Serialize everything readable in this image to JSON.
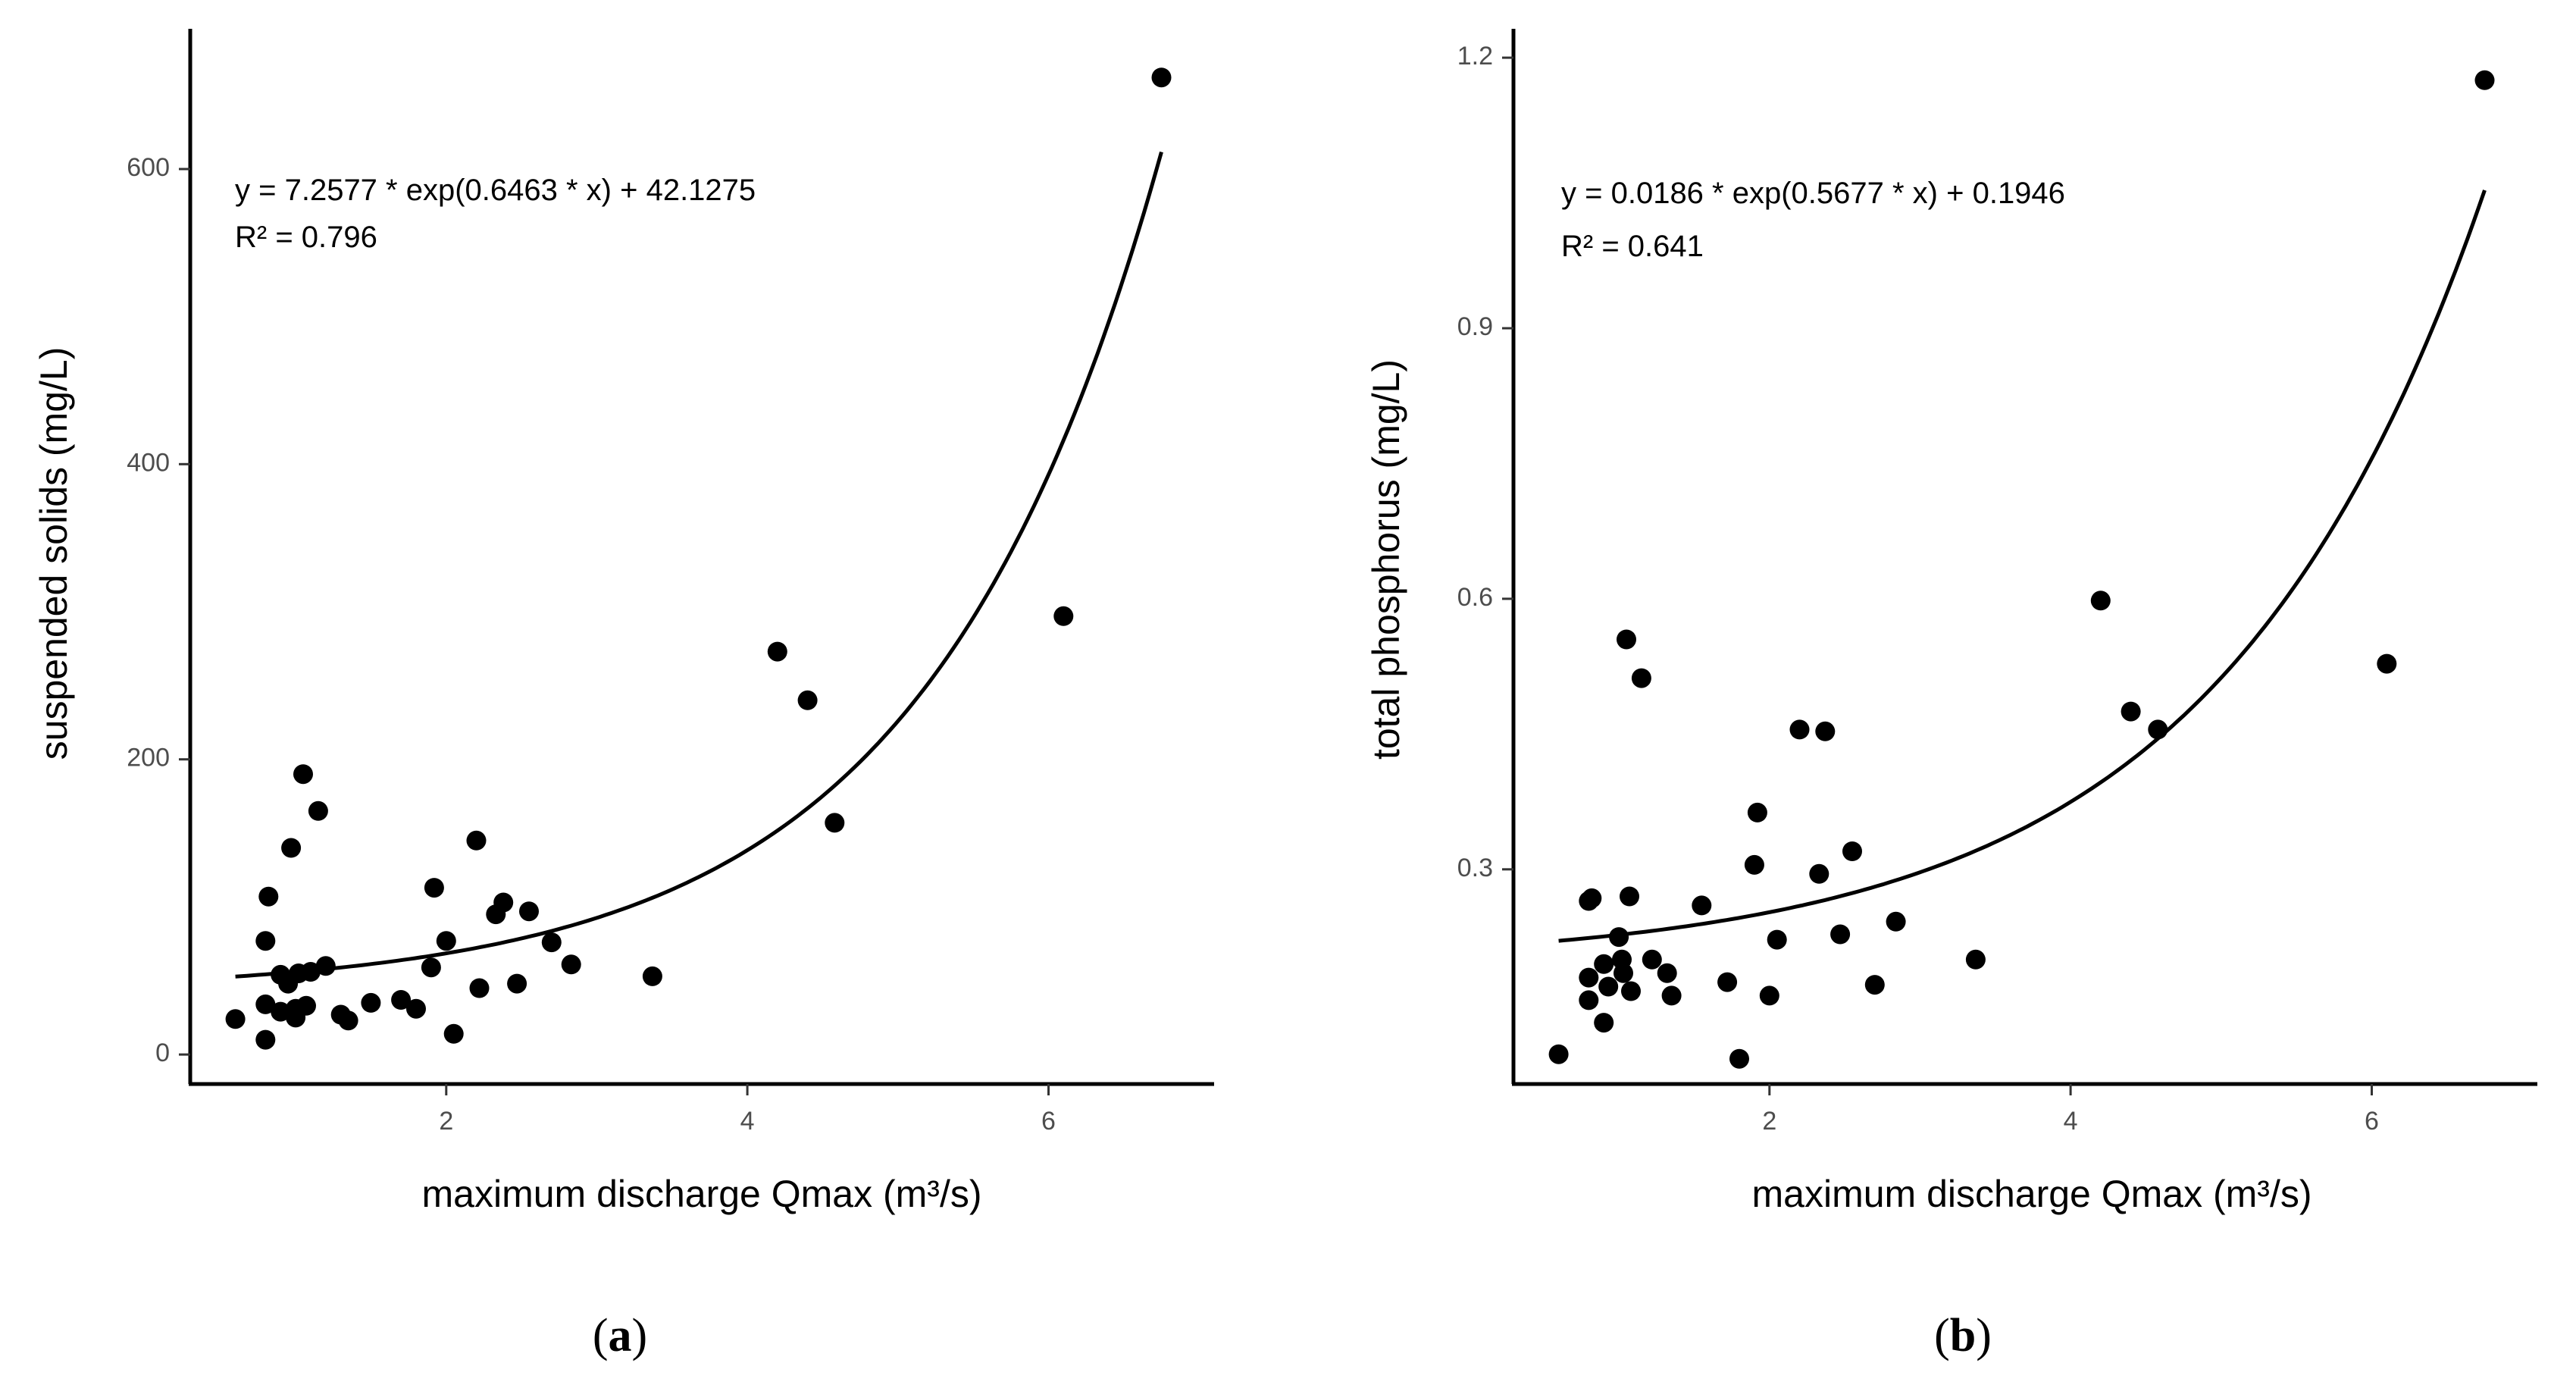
{
  "chart_data": [
    {
      "type": "scatter",
      "panel_label": "a",
      "xlabel": "maximum discharge Qmax (m³/s)",
      "ylabel": "suspended solids (mg/L)",
      "xlim": [
        0.3,
        7.1
      ],
      "ylim": [
        -20,
        695
      ],
      "xticks": [
        2,
        4,
        6
      ],
      "yticks": [
        0,
        200,
        400,
        600
      ],
      "xtick_labels": [
        "2",
        "4",
        "6"
      ],
      "ytick_labels": [
        "0",
        "200",
        "400",
        "600"
      ],
      "equation": "y = 7.2577 * exp(0.6463 * x) + 42.1275",
      "r2": "R² =  0.796",
      "fit": {
        "a": 7.2577,
        "b": 0.6463,
        "c": 42.1275,
        "x_from": 0.6,
        "x_to": 6.75
      },
      "points": [
        [
          0.6,
          24
        ],
        [
          0.8,
          10
        ],
        [
          0.8,
          34
        ],
        [
          0.8,
          77
        ],
        [
          0.82,
          107
        ],
        [
          0.9,
          29
        ],
        [
          0.9,
          54
        ],
        [
          0.95,
          48
        ],
        [
          0.97,
          140
        ],
        [
          1.0,
          25
        ],
        [
          1.0,
          31
        ],
        [
          1.02,
          55
        ],
        [
          1.05,
          190
        ],
        [
          1.07,
          33
        ],
        [
          1.1,
          56
        ],
        [
          1.15,
          165
        ],
        [
          1.2,
          60
        ],
        [
          1.3,
          27
        ],
        [
          1.35,
          23
        ],
        [
          1.5,
          35
        ],
        [
          1.7,
          37
        ],
        [
          1.8,
          31
        ],
        [
          1.9,
          59
        ],
        [
          1.92,
          113
        ],
        [
          2.0,
          77
        ],
        [
          2.05,
          14
        ],
        [
          2.2,
          145
        ],
        [
          2.22,
          45
        ],
        [
          2.33,
          95
        ],
        [
          2.38,
          103
        ],
        [
          2.47,
          48
        ],
        [
          2.55,
          97
        ],
        [
          2.7,
          76
        ],
        [
          2.83,
          61
        ],
        [
          3.37,
          53
        ],
        [
          4.2,
          273
        ],
        [
          4.4,
          240
        ],
        [
          4.58,
          157
        ],
        [
          6.1,
          297
        ],
        [
          6.75,
          662
        ]
      ]
    },
    {
      "type": "scatter",
      "panel_label": "b",
      "xlabel": "maximum discharge Qmax (m³/s)",
      "ylabel": "total phosphorus (mg/L)",
      "xlim": [
        0.3,
        7.1
      ],
      "ylim": [
        0.062,
        1.232
      ],
      "xticks": [
        2,
        4,
        6
      ],
      "yticks": [
        0.3,
        0.6,
        0.9,
        1.2
      ],
      "xtick_labels": [
        "2",
        "4",
        "6"
      ],
      "ytick_labels": [
        "0.3",
        "0.6",
        "0.9",
        "1.2"
      ],
      "equation": "y = 0.0186 * exp(0.5677 * x) + 0.1946",
      "r2": "R² =  0.641",
      "fit": {
        "a": 0.0186,
        "b": 0.5677,
        "c": 0.1946,
        "x_from": 0.6,
        "x_to": 6.75
      },
      "points": [
        [
          0.6,
          0.095
        ],
        [
          0.8,
          0.155
        ],
        [
          0.8,
          0.18
        ],
        [
          0.8,
          0.265
        ],
        [
          0.82,
          0.268
        ],
        [
          0.9,
          0.13
        ],
        [
          0.9,
          0.195
        ],
        [
          0.93,
          0.17
        ],
        [
          1.0,
          0.225
        ],
        [
          1.02,
          0.2
        ],
        [
          1.03,
          0.185
        ],
        [
          1.05,
          0.555
        ],
        [
          1.07,
          0.27
        ],
        [
          1.08,
          0.165
        ],
        [
          1.15,
          0.512
        ],
        [
          1.22,
          0.2
        ],
        [
          1.32,
          0.185
        ],
        [
          1.35,
          0.16
        ],
        [
          1.55,
          0.26
        ],
        [
          1.72,
          0.175
        ],
        [
          1.8,
          0.09
        ],
        [
          1.9,
          0.305
        ],
        [
          1.92,
          0.363
        ],
        [
          2.0,
          0.16
        ],
        [
          2.05,
          0.222
        ],
        [
          2.2,
          0.455
        ],
        [
          2.33,
          0.295
        ],
        [
          2.37,
          0.453
        ],
        [
          2.47,
          0.228
        ],
        [
          2.55,
          0.32
        ],
        [
          2.7,
          0.172
        ],
        [
          2.84,
          0.242
        ],
        [
          3.37,
          0.2
        ],
        [
          4.2,
          0.598
        ],
        [
          4.4,
          0.475
        ],
        [
          4.58,
          0.455
        ],
        [
          6.1,
          0.528
        ],
        [
          6.75,
          1.175
        ]
      ]
    }
  ]
}
